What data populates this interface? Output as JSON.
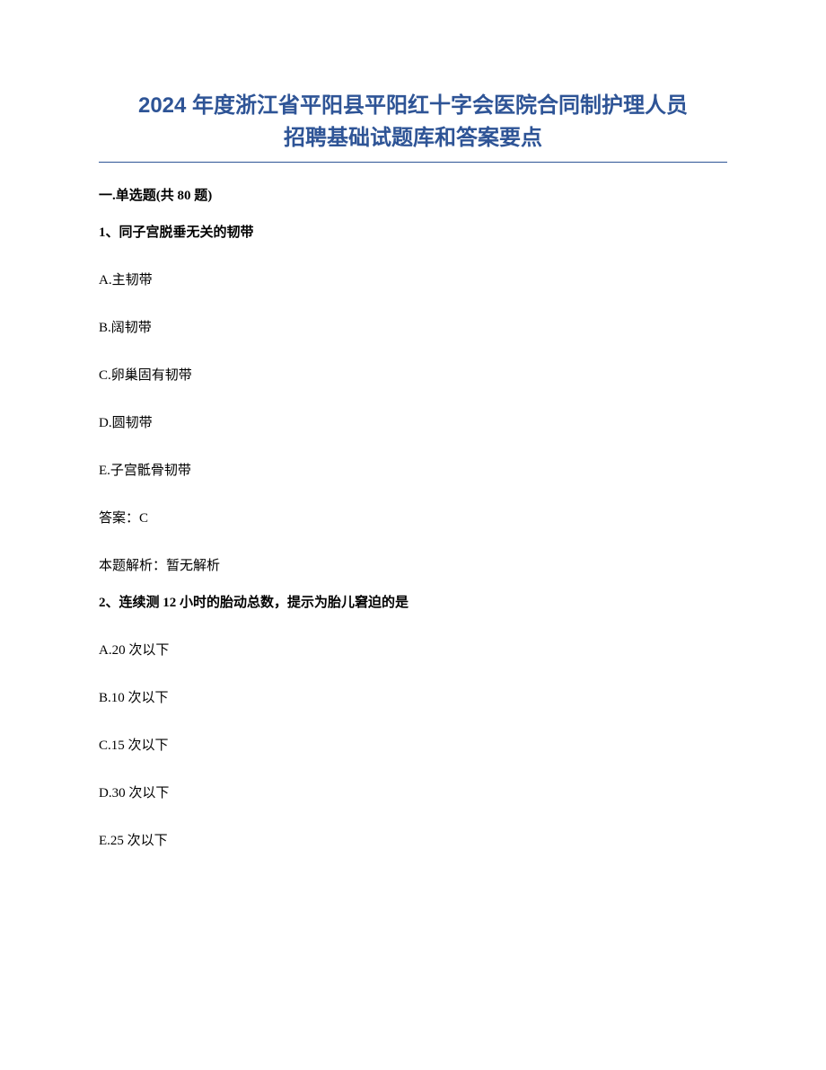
{
  "document": {
    "title_line1": "2024 年度浙江省平阳县平阳红十字会医院合同制护理人员",
    "title_line2": "招聘基础试题库和答案要点",
    "title_color": "#2e5496",
    "title_fontsize": 24,
    "body_fontsize": 15,
    "background_color": "#ffffff",
    "text_color": "#000000",
    "section_header": "一.单选题(共 80 题)",
    "questions": [
      {
        "number": "1、",
        "text": "同子宫脱垂无关的韧带",
        "options": [
          "A.主韧带",
          "B.阔韧带",
          "C.卵巢固有韧带",
          "D.圆韧带",
          "E.子宫骶骨韧带"
        ],
        "answer_label": "答案：",
        "answer_value": "C",
        "analysis_label": "本题解析：",
        "analysis_value": "暂无解析"
      },
      {
        "number": "2、",
        "text": "连续测 12 小时的胎动总数，提示为胎儿窘迫的是",
        "options": [
          "A.20 次以下",
          "B.10 次以下",
          "C.15 次以下",
          "D.30 次以下",
          "E.25 次以下"
        ]
      }
    ]
  }
}
